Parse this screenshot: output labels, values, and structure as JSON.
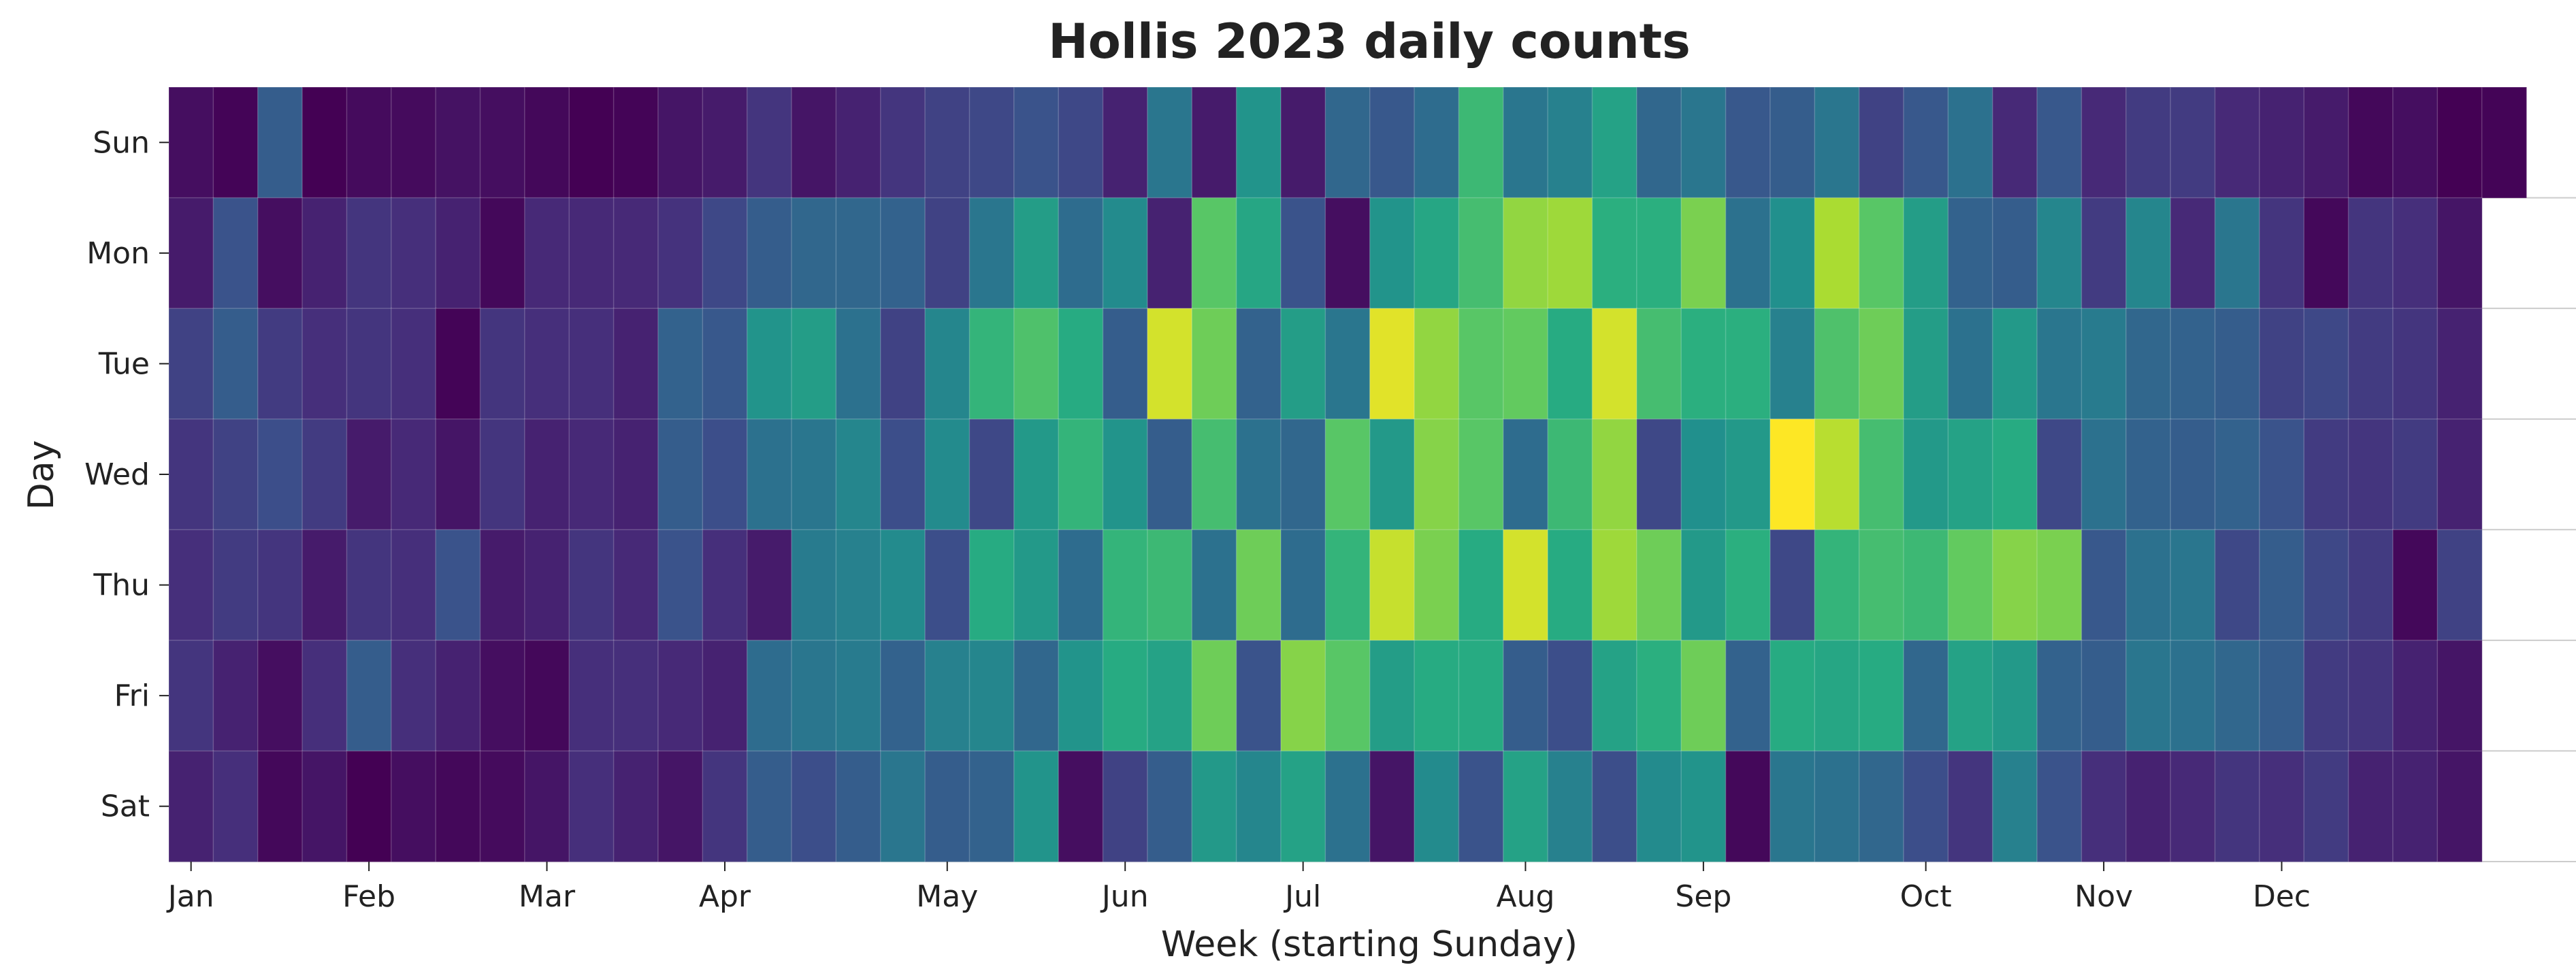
{
  "chart_data": {
    "type": "heatmap",
    "title": "Hollis 2023 daily counts",
    "xlabel": "Week (starting Sunday)",
    "ylabel": "Day",
    "row_labels": [
      "Sun",
      "Mon",
      "Tue",
      "Wed",
      "Thu",
      "Fri",
      "Sat"
    ],
    "month_ticks": [
      {
        "label": "Jan",
        "week": 0.5
      },
      {
        "label": "Feb",
        "week": 4.5
      },
      {
        "label": "Mar",
        "week": 8.5
      },
      {
        "label": "Apr",
        "week": 12.5
      },
      {
        "label": "May",
        "week": 17.5
      },
      {
        "label": "Jun",
        "week": 21.5
      },
      {
        "label": "Jul",
        "week": 25.5
      },
      {
        "label": "Aug",
        "week": 30.5
      },
      {
        "label": "Sep",
        "week": 34.5
      },
      {
        "label": "Oct",
        "week": 39.5
      },
      {
        "label": "Nov",
        "week": 43.5
      },
      {
        "label": "Dec",
        "week": 47.5
      }
    ],
    "weeks": 53,
    "first_week_start": "2023-01-01",
    "value_range": [
      0,
      1
    ],
    "colormap": "viridis",
    "values": [
      [
        0.04,
        0.01,
        0.3,
        0.0,
        0.03,
        0.03,
        0.05,
        0.04,
        0.02,
        0.0,
        0.01,
        0.06,
        0.08,
        0.16,
        0.06,
        0.1,
        0.16,
        0.2,
        0.22,
        0.26,
        0.22,
        0.1,
        0.4,
        0.08,
        0.52,
        0.08,
        0.34,
        0.28,
        0.36,
        0.68,
        0.4,
        0.44,
        0.58,
        0.34,
        0.4,
        0.28,
        0.3,
        0.4,
        0.2,
        0.28,
        0.38,
        0.12,
        0.28,
        0.12,
        0.18,
        0.18,
        0.12,
        0.1,
        0.08,
        0.02,
        0.04,
        0.0,
        0.01
      ],
      [
        0.08,
        0.26,
        0.04,
        0.1,
        0.16,
        0.14,
        0.1,
        0.02,
        0.12,
        0.12,
        0.12,
        0.15,
        0.22,
        0.3,
        0.34,
        0.34,
        0.32,
        0.2,
        0.4,
        0.56,
        0.36,
        0.48,
        0.1,
        0.74,
        0.6,
        0.26,
        0.04,
        0.52,
        0.6,
        0.7,
        0.84,
        0.86,
        0.64,
        0.64,
        0.8,
        0.38,
        0.5,
        0.88,
        0.74,
        0.56,
        0.32,
        0.3,
        0.46,
        0.18,
        0.46,
        0.12,
        0.4,
        0.16,
        0.02,
        0.16,
        0.14,
        0.06,
        null
      ],
      [
        0.2,
        0.3,
        0.18,
        0.14,
        0.16,
        0.14,
        0.01,
        0.16,
        0.14,
        0.14,
        0.1,
        0.32,
        0.28,
        0.52,
        0.56,
        0.38,
        0.2,
        0.46,
        0.66,
        0.72,
        0.62,
        0.3,
        0.94,
        0.78,
        0.32,
        0.56,
        0.4,
        0.96,
        0.84,
        0.74,
        0.76,
        0.62,
        0.94,
        0.7,
        0.64,
        0.64,
        0.44,
        0.72,
        0.78,
        0.56,
        0.38,
        0.54,
        0.4,
        0.42,
        0.34,
        0.32,
        0.3,
        0.2,
        0.22,
        0.18,
        0.16,
        0.1,
        null
      ],
      [
        0.16,
        0.2,
        0.24,
        0.18,
        0.08,
        0.12,
        0.06,
        0.16,
        0.1,
        0.12,
        0.1,
        0.3,
        0.24,
        0.38,
        0.4,
        0.46,
        0.24,
        0.48,
        0.22,
        0.54,
        0.66,
        0.52,
        0.3,
        0.7,
        0.38,
        0.34,
        0.74,
        0.54,
        0.82,
        0.74,
        0.36,
        0.68,
        0.84,
        0.22,
        0.5,
        0.54,
        1.0,
        0.9,
        0.7,
        0.54,
        0.58,
        0.62,
        0.22,
        0.38,
        0.32,
        0.3,
        0.32,
        0.26,
        0.18,
        0.16,
        0.18,
        0.1,
        null
      ],
      [
        0.14,
        0.18,
        0.16,
        0.08,
        0.16,
        0.14,
        0.26,
        0.08,
        0.1,
        0.16,
        0.12,
        0.26,
        0.14,
        0.08,
        0.42,
        0.44,
        0.48,
        0.24,
        0.62,
        0.54,
        0.36,
        0.66,
        0.68,
        0.38,
        0.78,
        0.36,
        0.66,
        0.92,
        0.8,
        0.62,
        0.94,
        0.62,
        0.86,
        0.78,
        0.54,
        0.64,
        0.22,
        0.66,
        0.7,
        0.68,
        0.76,
        0.82,
        0.8,
        0.28,
        0.38,
        0.4,
        0.22,
        0.3,
        0.22,
        0.18,
        0.02,
        0.2,
        null
      ],
      [
        0.16,
        0.1,
        0.04,
        0.14,
        0.3,
        0.14,
        0.1,
        0.04,
        0.02,
        0.14,
        0.14,
        0.12,
        0.1,
        0.36,
        0.4,
        0.42,
        0.32,
        0.44,
        0.46,
        0.34,
        0.52,
        0.62,
        0.58,
        0.78,
        0.26,
        0.82,
        0.74,
        0.56,
        0.62,
        0.62,
        0.3,
        0.24,
        0.58,
        0.64,
        0.78,
        0.32,
        0.62,
        0.6,
        0.62,
        0.34,
        0.58,
        0.54,
        0.32,
        0.3,
        0.4,
        0.38,
        0.34,
        0.3,
        0.18,
        0.16,
        0.1,
        0.06,
        null
      ],
      [
        0.1,
        0.14,
        0.02,
        0.06,
        0.0,
        0.04,
        0.02,
        0.03,
        0.06,
        0.14,
        0.1,
        0.06,
        0.16,
        0.3,
        0.24,
        0.3,
        0.4,
        0.3,
        0.32,
        0.52,
        0.04,
        0.2,
        0.3,
        0.54,
        0.46,
        0.58,
        0.38,
        0.06,
        0.48,
        0.26,
        0.58,
        0.44,
        0.24,
        0.48,
        0.52,
        0.02,
        0.4,
        0.38,
        0.34,
        0.24,
        0.16,
        0.44,
        0.26,
        0.14,
        0.1,
        0.12,
        0.16,
        0.14,
        0.18,
        0.1,
        0.1,
        0.06,
        null
      ]
    ]
  }
}
